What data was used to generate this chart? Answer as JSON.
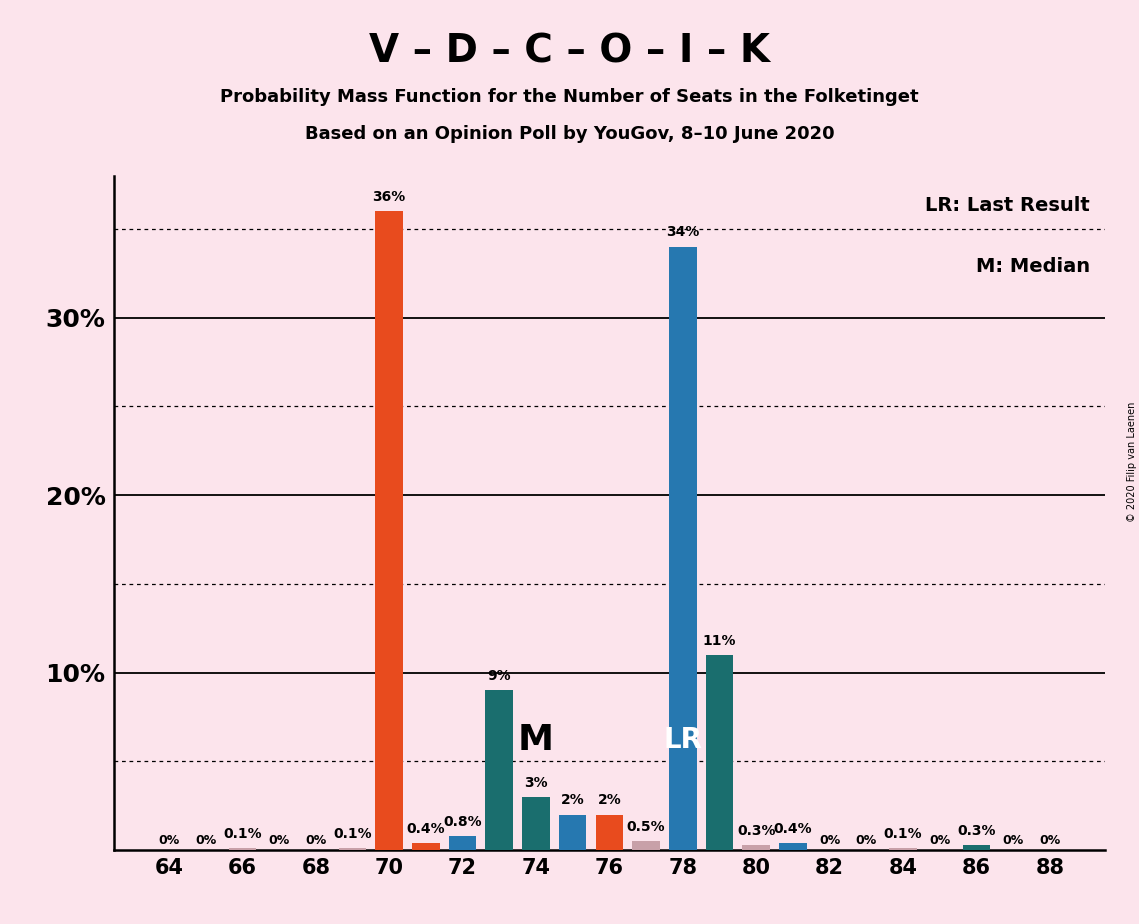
{
  "title_main": "V – D – C – O – I – K",
  "title_sub1": "Probability Mass Function for the Number of Seats in the Folketinget",
  "title_sub2": "Based on an Opinion Poll by YouGov, 8–10 June 2020",
  "copyright": "© 2020 Filip van Laenen",
  "background_color": "#fce4ec",
  "seats": [
    64,
    65,
    66,
    67,
    68,
    69,
    70,
    71,
    72,
    73,
    74,
    75,
    76,
    77,
    78,
    79,
    80,
    81,
    82,
    83,
    84,
    85,
    86,
    87,
    88
  ],
  "values": [
    0.0,
    0.0,
    0.1,
    0.0,
    0.0,
    0.1,
    36.0,
    0.4,
    0.8,
    9.0,
    3.0,
    2.0,
    2.0,
    0.5,
    34.0,
    11.0,
    0.3,
    0.4,
    0.0,
    0.0,
    0.1,
    0.0,
    0.3,
    0.0,
    0.0
  ],
  "bar_colors_map": {
    "64": "#c8a0a8",
    "65": "#c8a0a8",
    "66": "#c8a0a8",
    "67": "#c8a0a8",
    "68": "#c8a0a8",
    "69": "#c8a0a8",
    "70": "#e84b1e",
    "71": "#e84b1e",
    "72": "#2678b0",
    "73": "#1a6e6e",
    "74": "#1a6e6e",
    "75": "#2678b0",
    "76": "#e84b1e",
    "77": "#c8a0a8",
    "78": "#2678b0",
    "79": "#1a6e6e",
    "80": "#c8a0a8",
    "81": "#2678b0",
    "82": "#c8a0a8",
    "83": "#c8a0a8",
    "84": "#c8a0a8",
    "85": "#c8a0a8",
    "86": "#1a6e6e",
    "87": "#c8a0a8",
    "88": "#c8a0a8"
  },
  "median_seat": 74,
  "lr_seat": 78,
  "ylim_max": 38,
  "yticks": [
    10,
    20,
    30
  ],
  "ytick_labels": [
    "10%",
    "20%",
    "30%"
  ],
  "xtick_seats": [
    64,
    66,
    68,
    70,
    72,
    74,
    76,
    78,
    80,
    82,
    84,
    86,
    88
  ],
  "solid_gridlines": [
    10,
    20,
    30
  ],
  "dotted_gridlines": [
    5,
    15,
    25,
    35
  ],
  "legend_lr": "LR: Last Result",
  "legend_m": "M: Median",
  "color_orange": "#e84b1e",
  "color_blue": "#2678b0",
  "color_teal": "#1a6e6e",
  "bar_width": 0.75,
  "label_min_show": 0.05
}
